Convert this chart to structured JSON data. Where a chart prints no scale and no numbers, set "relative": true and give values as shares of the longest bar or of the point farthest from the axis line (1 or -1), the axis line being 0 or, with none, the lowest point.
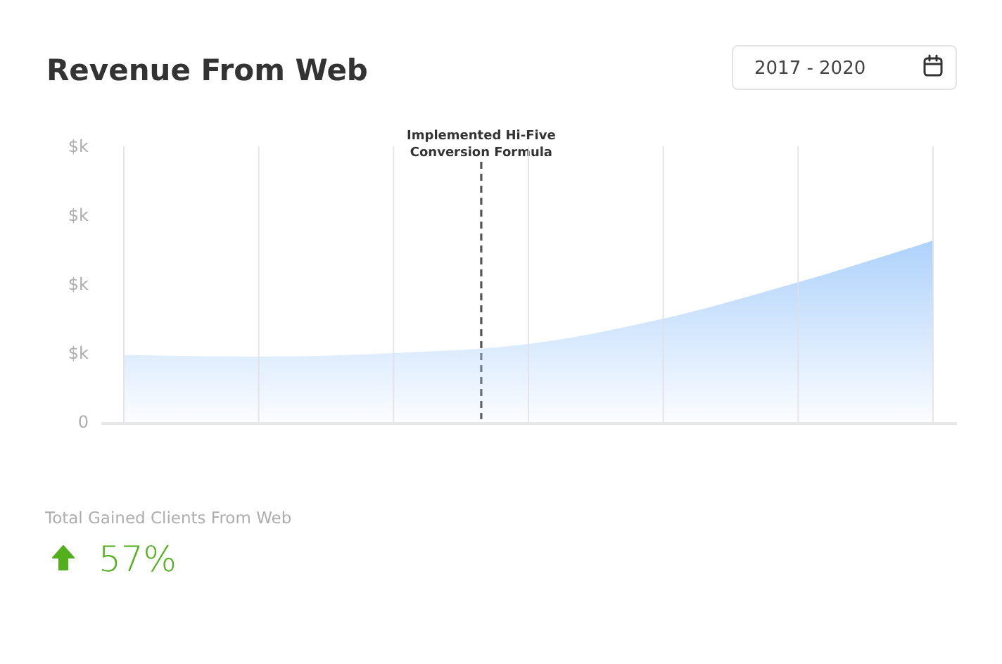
{
  "chart_data": {
    "type": "area",
    "title": "Revenue From Web",
    "subtitle": "2017 - 2020",
    "relative": true,
    "categories": [
      null,
      null,
      null,
      null,
      null,
      null,
      null
    ],
    "values": [
      0.37,
      0.36,
      0.38,
      0.43,
      0.57,
      0.77,
      1
    ],
    "color": "#aed2fb",
    "grid": "x",
    "annotations": [
      "Implemented Hi-Five Conversion Formula",
      "$k",
      "$k",
      "$k",
      "$k",
      "0",
      "Total Gained Clients From Web",
      "57%"
    ]
  }
}
